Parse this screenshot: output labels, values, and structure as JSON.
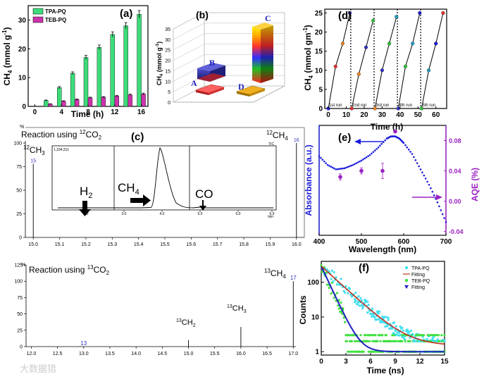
{
  "figure": {
    "watermark": "大数据猎"
  },
  "chart_data": [
    {
      "panel": "(a)",
      "type": "bar",
      "ylabel": "CH4 (mmol g-1)",
      "xlabel": "Time (h)",
      "xticks": [
        "0",
        "4",
        "8",
        "12",
        "16"
      ],
      "yticks": [
        "0",
        "10",
        "20",
        "30"
      ],
      "ylim": [
        0,
        35
      ],
      "xlim": [
        -1,
        17
      ],
      "x": [
        2,
        4,
        6,
        8,
        10,
        12,
        14,
        16
      ],
      "series": [
        {
          "name": "TPA-PQ",
          "color": "#3ddc7a",
          "values": [
            2.0,
            6.5,
            11.5,
            17.0,
            20.5,
            25.0,
            28.0,
            32.0
          ],
          "errors": [
            0.2,
            0.4,
            0.5,
            0.7,
            0.8,
            0.9,
            1.1,
            1.3
          ]
        },
        {
          "name": "TEB-PQ",
          "color": "#cc33aa",
          "values": [
            0.8,
            1.8,
            2.4,
            3.0,
            3.2,
            3.6,
            4.0,
            4.3
          ],
          "errors": [
            0.1,
            0.15,
            0.2,
            0.2,
            0.2,
            0.25,
            0.25,
            0.3
          ]
        }
      ],
      "legend_position": "top-left",
      "title_label": "(a)"
    },
    {
      "panel": "(b)",
      "type": "bar",
      "title_label": "(b)",
      "ylabel": "CH4 (mmol g-1)",
      "yticks": [
        "0",
        "5",
        "10",
        "15",
        "20",
        "25",
        "30",
        "35"
      ],
      "ylim": [
        0,
        35
      ],
      "categories": [
        "A",
        "B",
        "C",
        "D"
      ],
      "values": [
        1.0,
        4.3,
        32.0,
        1.0
      ],
      "colors": [
        "#e34a4a",
        "#3030a0",
        "#ff3030",
        "#d4a010"
      ]
    },
    {
      "panel": "(d)",
      "type": "line",
      "title_label": "(d)",
      "ylabel": "CH4 (mmol gm-1)",
      "xlabel": "Time (h)",
      "xticks": [
        "0",
        "10",
        "20",
        "30",
        "40",
        "50",
        "60"
      ],
      "yticks": [
        "0",
        "5",
        "10",
        "15",
        "20",
        "25"
      ],
      "ylim": [
        0,
        26
      ],
      "xlim": [
        -2,
        66
      ],
      "run_labels": [
        "1st run",
        "2nd run",
        "3rd run",
        "4th run",
        "5th run"
      ],
      "runs": [
        {
          "x": [
            0,
            4,
            8,
            12
          ],
          "y": [
            0,
            11,
            17,
            25
          ]
        },
        {
          "x": [
            13,
            17,
            21,
            25
          ],
          "y": [
            0,
            9,
            16,
            23
          ]
        },
        {
          "x": [
            26,
            30,
            34,
            38
          ],
          "y": [
            0,
            10,
            17,
            24
          ]
        },
        {
          "x": [
            39,
            43,
            47,
            51
          ],
          "y": [
            0,
            11,
            17,
            25
          ]
        },
        {
          "x": [
            52,
            56,
            60,
            64
          ],
          "y": [
            0,
            10,
            17,
            25
          ]
        }
      ],
      "point_colors": [
        "#1a1adb",
        "#e63030",
        "#f08020",
        "#3030c0",
        "#30c040",
        "#20a0c0"
      ],
      "separators_x": [
        12.5,
        25.5,
        38.5,
        51.5
      ]
    },
    {
      "panel": "(c)",
      "type": "bar",
      "title_label": "(c)",
      "spectrum_title": "Reaction using ¹²CO₂",
      "peak_label_right": "¹²CH₄",
      "peak_label_left": "¹²CH₃",
      "yaxis_unit": "%",
      "yticks": [
        "0",
        "25",
        "50",
        "75",
        "100"
      ],
      "ylim": [
        0,
        100
      ],
      "xticks": [
        "15.0",
        "15.1",
        "15.2",
        "15.3",
        "15.4",
        "15.5",
        "15.6",
        "15.7",
        "15.8",
        "15.9",
        "16.0"
      ],
      "xlim": [
        14.97,
        16.03
      ],
      "peaks": [
        {
          "mz": 15,
          "intensity": 78,
          "label": "15"
        },
        {
          "mz": 16,
          "intensity": 100,
          "label": "16"
        }
      ],
      "inset": {
        "header": "1.334;311",
        "tag": "TIC",
        "xticks": [
          "2.0",
          "3.0",
          "4.0",
          "5.0",
          "6.0",
          "6.9"
        ],
        "xunit": "min",
        "labels": [
          "H₂",
          "CH₄",
          "CO"
        ]
      }
    },
    {
      "panel": "(c-lower)",
      "type": "bar",
      "spectrum_title": "Reaction using ¹³CO₂",
      "yaxis_unit": "%",
      "yticks": [
        "0",
        "25",
        "50",
        "75",
        "100",
        "125"
      ],
      "ylim": [
        0,
        125
      ],
      "xticks": [
        "12.0",
        "12.5",
        "13.0",
        "13.5",
        "14.0",
        "14.5",
        "15.0",
        "15.5",
        "16.0",
        "16.5",
        "17.0"
      ],
      "xlim": [
        11.9,
        17.05
      ],
      "peaks": [
        {
          "mz": 13,
          "intensity": 0,
          "label": "13"
        },
        {
          "mz": 15,
          "intensity": 10,
          "label": "¹³CH₂"
        },
        {
          "mz": 16,
          "intensity": 30,
          "label": "¹³CH₃"
        },
        {
          "mz": 17,
          "intensity": 100,
          "label": "17",
          "name": "¹³CH₄"
        }
      ]
    },
    {
      "panel": "(e)",
      "type": "line",
      "title_label": "(e)",
      "ylabel": "Absorbance (a.u.)",
      "ylabel_right": "AQE (%)",
      "xlabel": "Wavelength (nm)",
      "xticks": [
        "400",
        "500",
        "600",
        "700"
      ],
      "yticks_right": [
        "-0.04",
        "0.00",
        "0.04",
        "0.08"
      ],
      "xlim": [
        400,
        700
      ],
      "ylim_left": [
        0,
        1
      ],
      "ylim_right": [
        -0.045,
        0.1
      ],
      "absorbance": {
        "color": "#1a1add",
        "x": [
          400,
          420,
          440,
          460,
          480,
          500,
          520,
          540,
          560,
          570,
          580,
          590,
          600,
          620,
          640,
          660,
          680,
          700
        ],
        "y": [
          0.72,
          0.64,
          0.6,
          0.61,
          0.64,
          0.68,
          0.73,
          0.8,
          0.88,
          0.9,
          0.9,
          0.88,
          0.84,
          0.74,
          0.6,
          0.46,
          0.3,
          0.12
        ]
      },
      "aqe": {
        "color": "#9a20c0",
        "x": [
          450,
          500,
          550,
          580
        ],
        "y": [
          0.032,
          0.04,
          0.04,
          0.092
        ],
        "errors": [
          0.004,
          0.004,
          0.01,
          0.0
        ]
      }
    },
    {
      "panel": "(f)",
      "type": "scatter",
      "title_label": "(f)",
      "ylabel": "Counts",
      "xlabel": "Time (ns)",
      "xticks": [
        "0",
        "3",
        "6",
        "9",
        "12",
        "15"
      ],
      "yticks": [
        "1",
        "10",
        "100"
      ],
      "log_y": true,
      "xlim": [
        0,
        15
      ],
      "ylim": [
        0.8,
        400
      ],
      "series": [
        {
          "name": "TPA-PQ",
          "color": "#40e0f0",
          "kind": "points"
        },
        {
          "name": "Fitting",
          "color": "#c03020",
          "kind": "line"
        },
        {
          "name": "TEB-PQ",
          "color": "#40e040",
          "kind": "points"
        },
        {
          "name": "Fitting",
          "color": "#2020c0",
          "kind": "line"
        }
      ],
      "legend_position": "top-right"
    }
  ]
}
